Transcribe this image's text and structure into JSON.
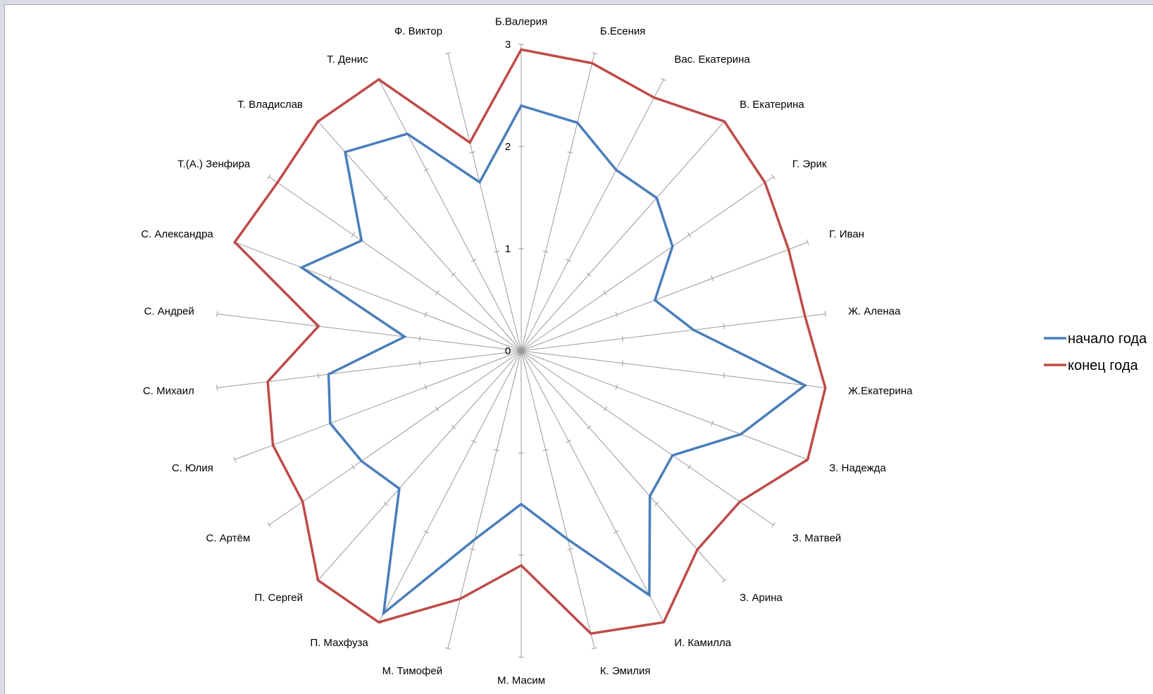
{
  "chart_data": {
    "type": "radar",
    "r_range": [
      0,
      3
    ],
    "r_ticks": [
      "0",
      "1",
      "2",
      "3"
    ],
    "grid": true,
    "legend_position": "right",
    "categories": [
      "Б.Валерия",
      "Б.Есения",
      "Вас. Екатерина",
      "В. Екатерина",
      "Г. Эрик",
      "Г. Иван",
      "Ж. Аленаа",
      "Ж.Екатерина",
      "З.   Надежда",
      "З. Матвей",
      "З. Арина",
      "И. Камилла",
      "К. Эмилия",
      "М. Масим",
      "М. Тимофей",
      "П. Махфуза",
      "П. Сергей",
      "С. Артём",
      "С. Юлия",
      "С. Михаил",
      "С. Андрей",
      "С. Александра",
      "Т.(А.) Зенфира",
      "Т. Владислав",
      "Т. Денис",
      "Ф. Виктор"
    ],
    "series": [
      {
        "name": "начало года",
        "color": "#4a7ebb",
        "values": [
          2.4,
          2.3,
          2.0,
          2.0,
          1.8,
          1.4,
          1.7,
          2.8,
          2.3,
          1.8,
          1.9,
          2.7,
          1.9,
          1.5,
          1.9,
          2.9,
          1.8,
          1.9,
          2.0,
          1.9,
          1.15,
          2.3,
          1.9,
          2.6,
          2.4,
          1.7
        ]
      },
      {
        "name": "конец года",
        "color": "#be4b48",
        "values": [
          2.95,
          2.9,
          2.8,
          3.0,
          2.9,
          2.8,
          2.8,
          3.0,
          3.0,
          2.6,
          2.6,
          3.0,
          2.85,
          2.1,
          2.5,
          3.0,
          3.0,
          2.6,
          2.6,
          2.5,
          2.0,
          3.0,
          2.9,
          3.0,
          3.0,
          2.1
        ]
      }
    ]
  }
}
